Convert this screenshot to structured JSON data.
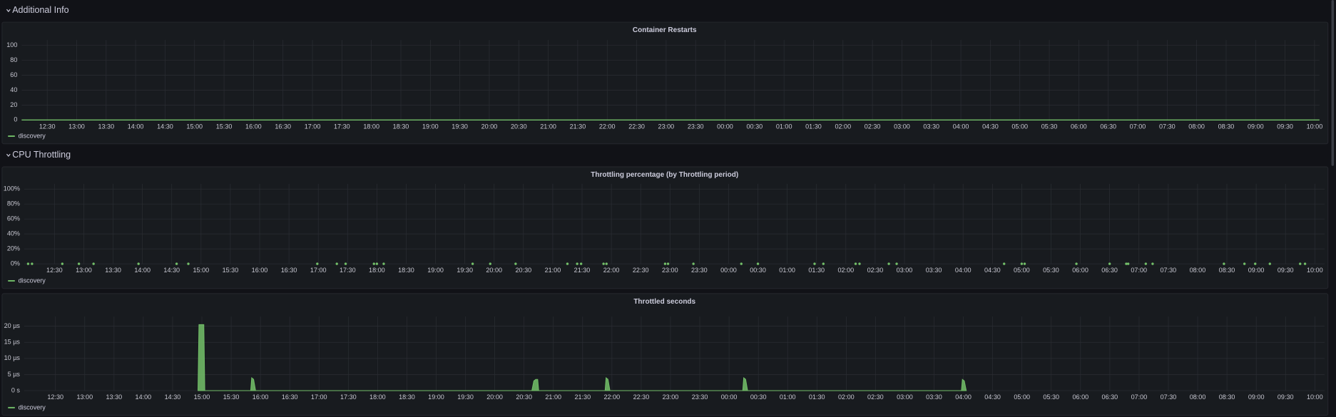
{
  "rows": [
    {
      "title": "Additional Info"
    },
    {
      "title": "CPU Throttling"
    }
  ],
  "chart_data": [
    {
      "type": "line",
      "title": "Container Restarts",
      "xlim": [
        "12:04",
        "10:05"
      ],
      "xticks": [
        "12:30",
        "13:00",
        "13:30",
        "14:00",
        "14:30",
        "15:00",
        "15:30",
        "16:00",
        "16:30",
        "17:00",
        "17:30",
        "18:00",
        "18:30",
        "19:00",
        "19:30",
        "20:00",
        "20:30",
        "21:00",
        "21:30",
        "22:00",
        "22:30",
        "23:00",
        "23:30",
        "00:00",
        "00:30",
        "01:00",
        "01:30",
        "02:00",
        "02:30",
        "03:00",
        "03:30",
        "04:00",
        "04:30",
        "05:00",
        "05:30",
        "06:00",
        "06:30",
        "07:00",
        "07:30",
        "08:00",
        "08:30",
        "09:00",
        "09:30",
        "10:00"
      ],
      "ylim": [
        0,
        107
      ],
      "yticks": [
        0,
        20,
        40,
        60,
        80,
        100
      ],
      "grid": true,
      "x": [
        "12:04",
        "10:05"
      ],
      "series": [
        {
          "name": "discovery",
          "color": "#73bf69",
          "values": [
            0,
            0
          ]
        }
      ]
    },
    {
      "type": "scatter",
      "title": "Throttling percentage (by Throttling period)",
      "xlim": [
        "11:59",
        "10:10"
      ],
      "xticks": [
        "12:30",
        "13:00",
        "13:30",
        "14:00",
        "14:30",
        "15:00",
        "15:30",
        "16:00",
        "16:30",
        "17:00",
        "17:30",
        "18:00",
        "18:30",
        "19:00",
        "19:30",
        "20:00",
        "20:30",
        "21:00",
        "21:30",
        "22:00",
        "22:30",
        "23:00",
        "23:30",
        "00:00",
        "00:30",
        "01:00",
        "01:30",
        "02:00",
        "02:30",
        "03:00",
        "03:30",
        "04:00",
        "04:30",
        "05:00",
        "05:30",
        "06:00",
        "06:30",
        "07:00",
        "07:30",
        "08:00",
        "08:30",
        "09:00",
        "09:30",
        "10:00"
      ],
      "ylim": [
        0,
        107
      ],
      "yticks": [
        {
          "value": 0,
          "label": "0%"
        },
        {
          "value": 20,
          "label": "20%"
        },
        {
          "value": 40,
          "label": "40%"
        },
        {
          "value": 60,
          "label": "60%"
        },
        {
          "value": 80,
          "label": "80%"
        },
        {
          "value": 100,
          "label": "100%"
        }
      ],
      "grid": true,
      "x": [
        "12:03",
        "12:07",
        "12:38",
        "12:55",
        "13:10",
        "13:56",
        "14:35",
        "14:47",
        "16:59",
        "17:19",
        "17:28",
        "17:57",
        "18:00",
        "18:07",
        "19:38",
        "19:56",
        "20:22",
        "21:15",
        "21:25",
        "21:29",
        "21:52",
        "21:55",
        "22:55",
        "22:58",
        "23:24",
        "00:13",
        "00:30",
        "01:28",
        "01:37",
        "02:10",
        "02:14",
        "02:44",
        "02:52",
        "04:42",
        "05:00",
        "05:03",
        "05:56",
        "06:30",
        "06:47",
        "06:49",
        "07:07",
        "07:14",
        "08:27",
        "08:48",
        "08:59",
        "09:14",
        "09:45",
        "09:50"
      ],
      "series": [
        {
          "name": "discovery",
          "color": "#73bf69",
          "values": [
            0,
            0,
            0,
            0,
            0,
            0,
            0,
            0,
            0,
            0,
            0,
            0,
            0,
            0,
            0,
            0,
            0,
            0,
            0,
            0,
            0,
            0,
            0,
            0,
            0,
            0,
            0,
            0,
            0,
            0,
            0,
            0,
            0,
            0,
            0,
            0,
            0,
            0,
            0,
            0,
            0,
            0,
            0,
            0,
            0,
            0,
            0,
            0
          ]
        }
      ]
    },
    {
      "type": "area",
      "title": "Throttled seconds",
      "xlim": [
        "11:58",
        "10:10"
      ],
      "xticks": [
        "12:30",
        "13:00",
        "13:30",
        "14:00",
        "14:30",
        "15:00",
        "15:30",
        "16:00",
        "16:30",
        "17:00",
        "17:30",
        "18:00",
        "18:30",
        "19:00",
        "19:30",
        "20:00",
        "20:30",
        "21:00",
        "21:30",
        "22:00",
        "22:30",
        "23:00",
        "23:30",
        "00:00",
        "00:30",
        "01:00",
        "01:30",
        "02:00",
        "02:30",
        "03:00",
        "03:30",
        "04:00",
        "04:30",
        "05:00",
        "05:30",
        "06:00",
        "06:30",
        "07:00",
        "07:30",
        "08:00",
        "08:30",
        "09:00",
        "09:30",
        "10:00"
      ],
      "ylim": [
        0,
        2.3e-05
      ],
      "yticks": [
        {
          "value": 0,
          "label": "0 s"
        },
        {
          "value": 5e-06,
          "label": "5 µs"
        },
        {
          "value": 1e-05,
          "label": "10 µs"
        },
        {
          "value": 1.5e-05,
          "label": "15 µs"
        },
        {
          "value": 2e-05,
          "label": "20 µs"
        }
      ],
      "grid": true,
      "x": [
        "14:56",
        "14:57",
        "15:02",
        "15:03",
        "15:50",
        "15:51",
        "15:53",
        "15:55",
        "20:38",
        "20:40",
        "20:42",
        "20:44",
        "20:45",
        "21:53",
        "21:54",
        "21:56",
        "21:58",
        "00:14",
        "00:15",
        "00:17",
        "00:19",
        "03:58",
        "03:59",
        "04:01",
        "04:03"
      ],
      "series": [
        {
          "name": "discovery",
          "color": "#73bf69",
          "values": [
            0,
            2.05e-05,
            2.05e-05,
            0,
            0,
            4e-06,
            3.5e-06,
            0,
            0,
            3e-06,
            3.5e-06,
            3.5e-06,
            0,
            0,
            4e-06,
            3.5e-06,
            0,
            0,
            4e-06,
            3.5e-06,
            0,
            0,
            3.5e-06,
            3e-06,
            0
          ]
        }
      ]
    }
  ]
}
